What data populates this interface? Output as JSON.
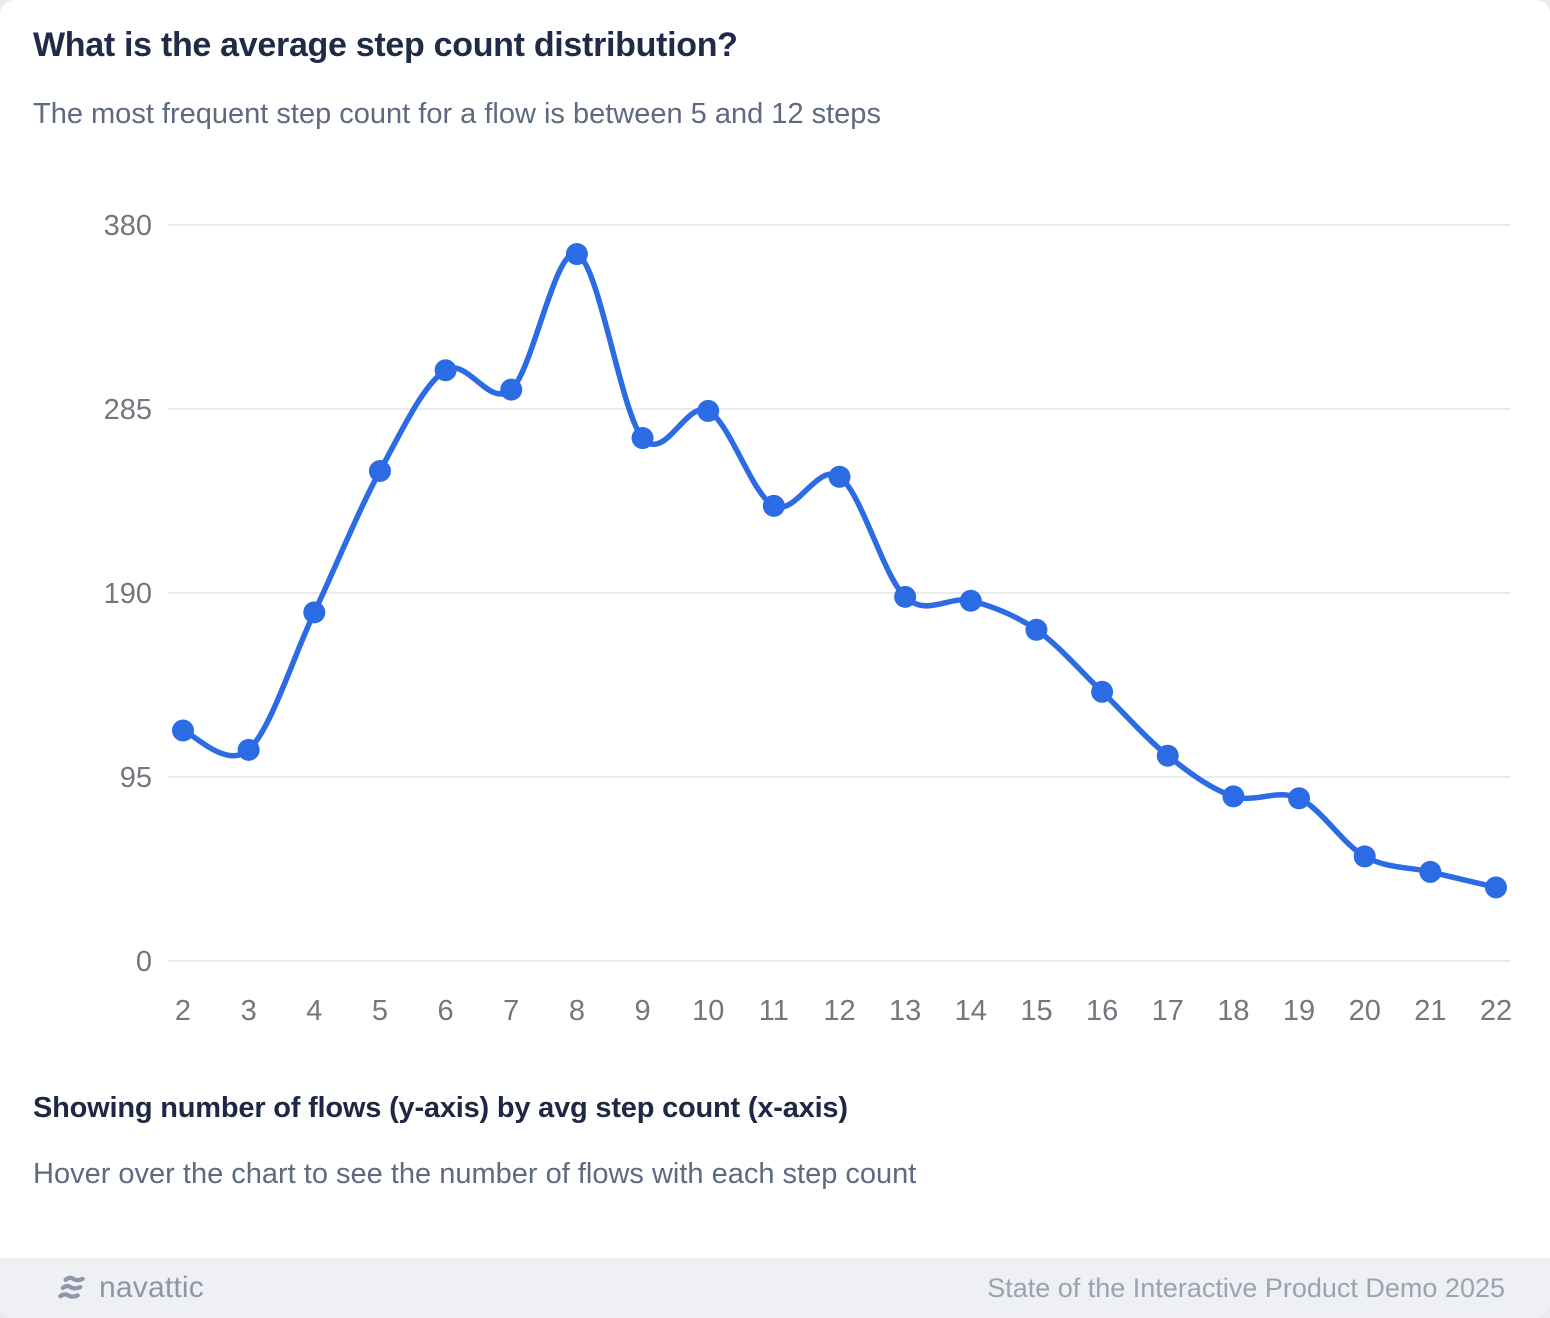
{
  "header": {
    "title": "What is the average step count distribution?",
    "subtitle": "The most frequent step count for a flow is between 5 and 12 steps"
  },
  "chart_data": {
    "type": "line",
    "x": [
      2,
      3,
      4,
      5,
      6,
      7,
      8,
      9,
      10,
      11,
      12,
      13,
      14,
      15,
      16,
      17,
      18,
      19,
      20,
      21,
      22
    ],
    "values": [
      119,
      109,
      180,
      253,
      305,
      295,
      365,
      270,
      284,
      235,
      250,
      188,
      186,
      171,
      139,
      106,
      85,
      84,
      54,
      46,
      38
    ],
    "series_name": "Number of flows",
    "title": "What is the average step count distribution?",
    "xlabel": "avg step count",
    "ylabel": "number of flows",
    "yticks": [
      0,
      95,
      190,
      285,
      380
    ],
    "ylim": [
      0,
      380
    ],
    "xlim": [
      2,
      22
    ],
    "grid": "horizontal",
    "legend": "none",
    "line_color": "#2B6BE4",
    "point_color": "#2B6BE4",
    "gridline_color": "#e9ebee",
    "tick_label_color": "#73777e"
  },
  "caption": {
    "bold": "Showing number of flows (y-axis) by avg step count (x-axis)",
    "hint": "Hover over the chart to see the number of flows with each step count"
  },
  "footer": {
    "brand": "navattic",
    "report": "State of the Interactive Product Demo 2025"
  },
  "colors": {
    "card_background": "#ffffff",
    "page_background": "#e9ebee",
    "footer_background": "#eef0f3",
    "title_text": "#202b47",
    "subtitle_text": "#5d6a80",
    "footer_text": "#9aa3b2",
    "brand_text": "#8e97a9"
  }
}
